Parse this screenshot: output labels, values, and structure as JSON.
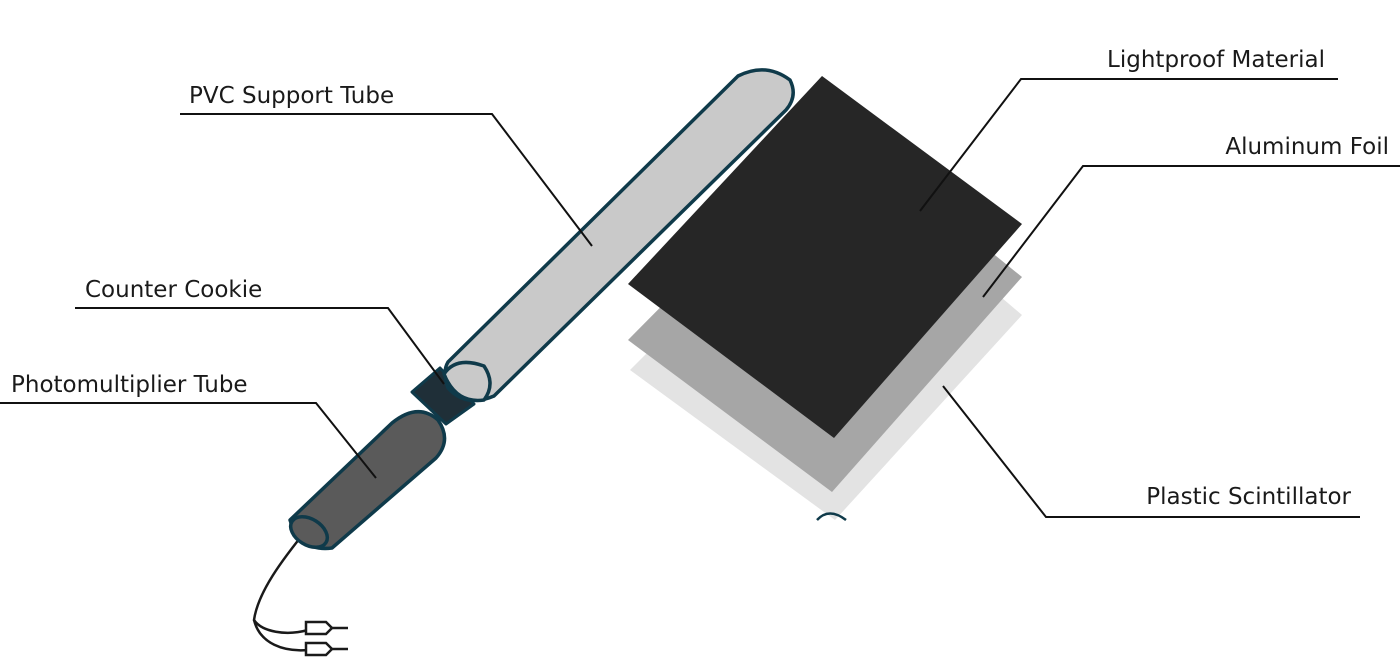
{
  "labels": {
    "pvc_support_tube": "PVC Support Tube",
    "counter_cookie": "Counter Cookie",
    "photomultiplier_tube": "Photomultiplier Tube",
    "lightproof_material": "Lightproof Material",
    "aluminum_foil": "Aluminum Foil",
    "plastic_scintillator": "Plastic Scintillator"
  },
  "colors": {
    "outline": "#0f3a4a",
    "pvc_tube_fill": "#c9c9c9",
    "cookie_fill": "#1f2f38",
    "pmt_fill": "#5a5a5a",
    "lightproof_fill": "#262626",
    "aluminum_fill": "#a6a6a6",
    "scintillator_fill": "#e3e3e3",
    "cable": "#1a1a1a",
    "leader_line": "#111111"
  }
}
